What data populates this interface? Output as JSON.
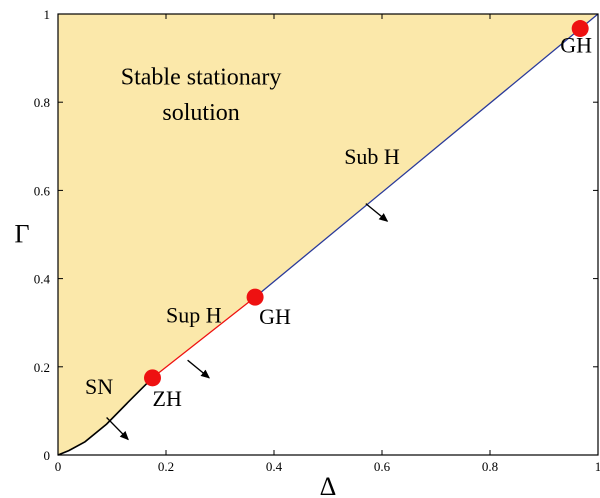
{
  "chart_data": {
    "type": "line",
    "xlabel": "Δ",
    "ylabel": "Γ",
    "xlim": [
      0,
      1
    ],
    "ylim": [
      0,
      1
    ],
    "xticks": [
      "0",
      "0.2",
      "0.4",
      "0.6",
      "0.8",
      "1"
    ],
    "yticks": [
      "0",
      "0.2",
      "0.4",
      "0.6",
      "0.8",
      "1"
    ],
    "grid": false,
    "colors": {
      "region": "#fbe8aa",
      "sn": "#000000",
      "sup_h": "#ee1111",
      "sub_h": "#2a3a9a",
      "point": "#ee1111",
      "frame": "#000000"
    },
    "region": {
      "label_line1": "Stable stationary",
      "label_line2": "solution"
    },
    "series": [
      {
        "name": "SN",
        "x": [
          0,
          0.02,
          0.05,
          0.09,
          0.13,
          0.175
        ],
        "y": [
          0,
          0.01,
          0.03,
          0.07,
          0.12,
          0.175
        ]
      },
      {
        "name": "Sup H",
        "x": [
          0.175,
          0.365
        ],
        "y": [
          0.175,
          0.358
        ]
      },
      {
        "name": "Sub H",
        "x": [
          0.365,
          1.0
        ],
        "y": [
          0.358,
          1.0
        ]
      }
    ],
    "points": [
      {
        "label": "ZH",
        "x": 0.175,
        "y": 0.175
      },
      {
        "label": "GH",
        "x": 0.365,
        "y": 0.358
      },
      {
        "label": "GH",
        "x": 0.967,
        "y": 0.967
      }
    ],
    "annotations": [
      {
        "text": "SN",
        "x": 0.05,
        "y": 0.138,
        "arrow_from": [
          0.09,
          0.085
        ],
        "arrow_to": [
          0.13,
          0.035
        ]
      },
      {
        "text": "Sup H",
        "x": 0.2,
        "y": 0.3,
        "arrow_from": [
          0.24,
          0.215
        ],
        "arrow_to": [
          0.28,
          0.175
        ]
      },
      {
        "text": "Sub H",
        "x": 0.53,
        "y": 0.66,
        "arrow_from": [
          0.57,
          0.57
        ],
        "arrow_to": [
          0.61,
          0.53
        ]
      }
    ]
  }
}
